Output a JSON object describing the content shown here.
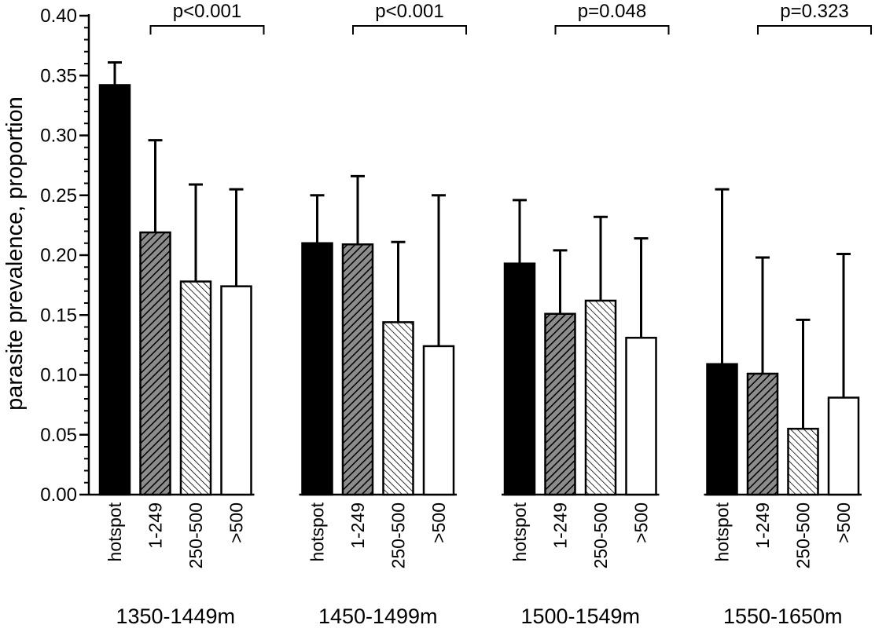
{
  "chart_data": {
    "type": "bar",
    "ylabel": "parasite prevalence, proportion",
    "xlabel": "",
    "ylim": [
      0,
      0.4
    ],
    "yticks": [
      "0.00",
      "0.05",
      "0.10",
      "0.15",
      "0.20",
      "0.25",
      "0.30",
      "0.35",
      "0.40"
    ],
    "yminor_step": 0.01,
    "grid": false,
    "categories": [
      "hotspot",
      "1-249",
      "250-500",
      ">500"
    ],
    "category_styles": [
      "solid-black",
      "gray-hatch",
      "white-hatch",
      "white"
    ],
    "groups": [
      {
        "label": "1350-1449m",
        "p_value": "p<0.001",
        "values": [
          0.342,
          0.219,
          0.178,
          0.174
        ],
        "upper_error": [
          0.361,
          0.296,
          0.259,
          0.255
        ]
      },
      {
        "label": "1450-1499m",
        "p_value": "p<0.001",
        "values": [
          0.21,
          0.209,
          0.144,
          0.124
        ],
        "upper_error": [
          0.25,
          0.266,
          0.211,
          0.25
        ]
      },
      {
        "label": "1500-1549m",
        "p_value": "p=0.048",
        "values": [
          0.193,
          0.151,
          0.162,
          0.131
        ],
        "upper_error": [
          0.246,
          0.204,
          0.232,
          0.214
        ]
      },
      {
        "label": "1550-1650m",
        "p_value": "p=0.323",
        "values": [
          0.109,
          0.101,
          0.055,
          0.081
        ],
        "upper_error": [
          0.255,
          0.198,
          0.146,
          0.201
        ]
      }
    ],
    "colors": {
      "bar_fill_dark": "#000000",
      "bar_fill_gray": "#8c8c8c",
      "stroke": "#000000",
      "background": "#ffffff"
    }
  }
}
